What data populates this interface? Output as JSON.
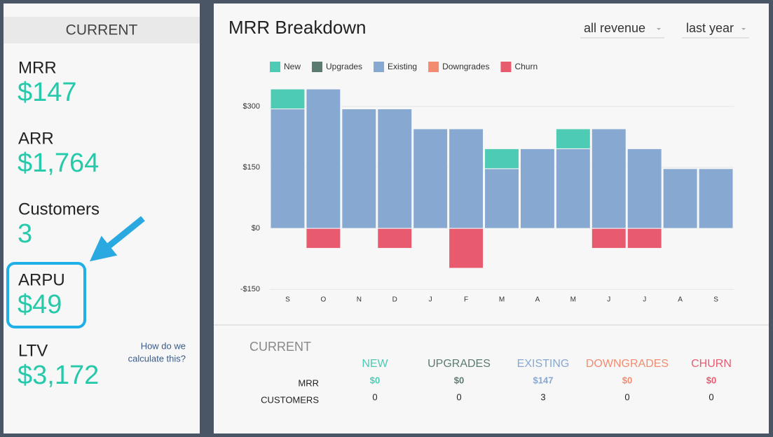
{
  "sidebar": {
    "header": "CURRENT",
    "metrics": [
      {
        "label": "MRR",
        "value": "$147"
      },
      {
        "label": "ARR",
        "value": "$1,764"
      },
      {
        "label": "Customers",
        "value": "3"
      },
      {
        "label": "ARPU",
        "value": "$49"
      },
      {
        "label": "LTV",
        "value": "$3,172"
      }
    ],
    "help_link": [
      "How do we",
      "calculate this?"
    ]
  },
  "header": {
    "title": "MRR Breakdown",
    "filters": [
      "all revenue",
      "last year"
    ]
  },
  "chart_data": {
    "type": "stacked_bar",
    "categories": [
      "S",
      "O",
      "N",
      "D",
      "J",
      "F",
      "M",
      "A",
      "M",
      "J",
      "J",
      "A",
      "S"
    ],
    "series": [
      {
        "name": "New",
        "color": "#4ecbb4",
        "values": [
          49,
          0,
          0,
          0,
          0,
          0,
          49,
          0,
          49,
          0,
          0,
          0,
          0
        ]
      },
      {
        "name": "Upgrades",
        "color": "#5b7b70",
        "values": [
          0,
          0,
          0,
          0,
          0,
          0,
          0,
          0,
          0,
          0,
          0,
          0,
          0
        ]
      },
      {
        "name": "Existing",
        "color": "#87a8d0",
        "values": [
          294,
          343,
          294,
          294,
          245,
          245,
          147,
          196,
          196,
          245,
          196,
          147,
          147
        ]
      },
      {
        "name": "Downgrades",
        "color": "#f38b70",
        "values": [
          0,
          0,
          0,
          0,
          0,
          0,
          0,
          0,
          0,
          0,
          0,
          0,
          0
        ]
      },
      {
        "name": "Churn",
        "color": "#e85b6f",
        "values": [
          0,
          -49,
          0,
          -49,
          0,
          -98,
          0,
          0,
          0,
          -49,
          -49,
          0,
          0
        ]
      }
    ],
    "ylim": [
      -160,
      400
    ],
    "yticks": [
      {
        "value": -150,
        "label": "-$150"
      },
      {
        "value": 0,
        "label": "$0"
      },
      {
        "value": 150,
        "label": "$150"
      },
      {
        "value": 300,
        "label": "$300"
      }
    ],
    "grid": true
  },
  "table": {
    "title": "CURRENT",
    "columns": [
      {
        "name": "NEW",
        "color": "#4ecbb4"
      },
      {
        "name": "UPGRADES",
        "color": "#5b7b70"
      },
      {
        "name": "EXISTING",
        "color": "#87a8d0"
      },
      {
        "name": "DOWNGRADES",
        "color": "#f38b70"
      },
      {
        "name": "CHURN",
        "color": "#e85b6f"
      }
    ],
    "rows": [
      {
        "label": "MRR",
        "cells": [
          "$0",
          "$0",
          "$147",
          "$0",
          "$0"
        ]
      },
      {
        "label": "CUSTOMERS",
        "cells": [
          "0",
          "0",
          "3",
          "0",
          "0"
        ]
      }
    ]
  }
}
